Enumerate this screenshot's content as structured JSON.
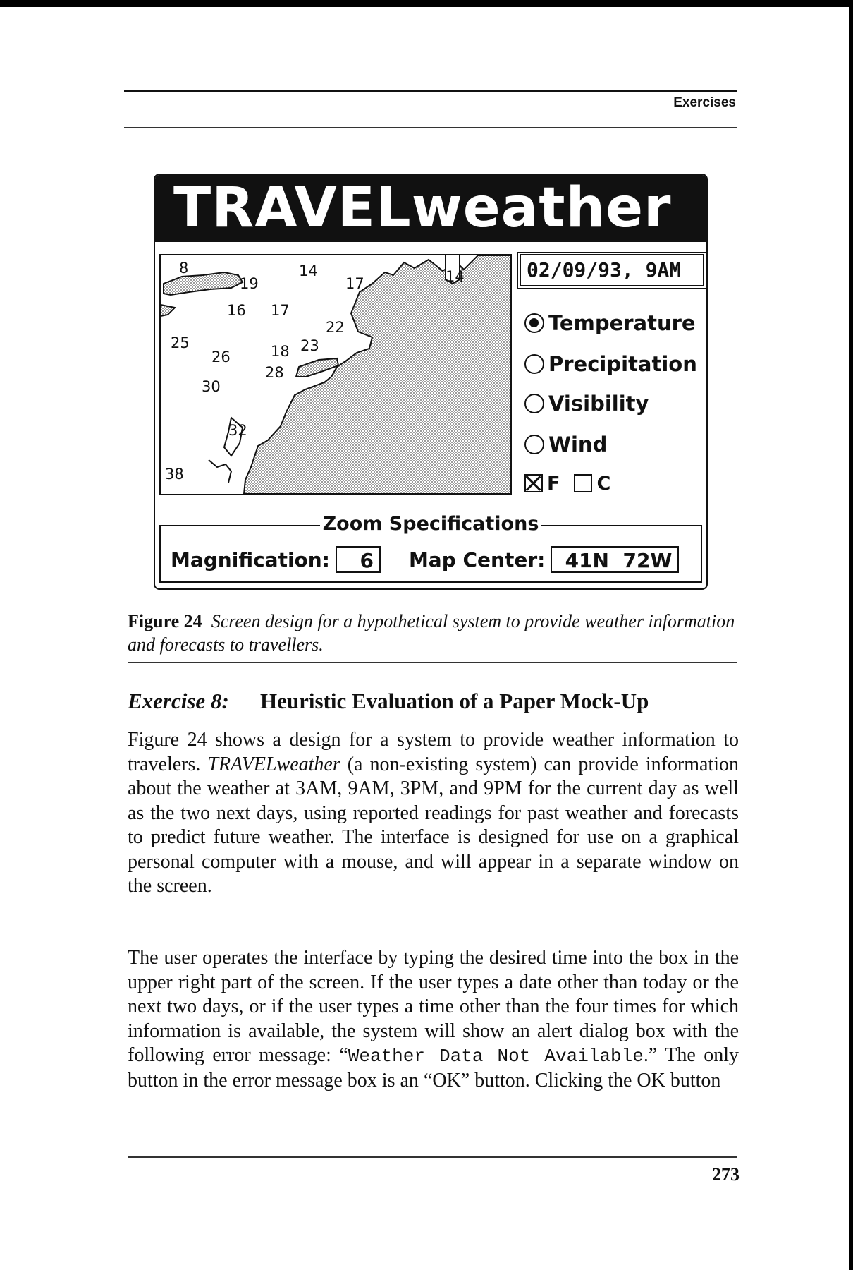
{
  "header": {
    "running_head": "Exercises"
  },
  "figure": {
    "app_title": "TRAVELweather",
    "date_value": "02/09/93, 9AM",
    "map_numbers": [
      "8",
      "14",
      "17",
      "14",
      "19",
      "16",
      "17",
      "22",
      "25",
      "26",
      "18",
      "23",
      "28",
      "30",
      "32",
      "38"
    ],
    "options": [
      {
        "label": "Temperature",
        "selected": true
      },
      {
        "label": "Precipitation",
        "selected": false
      },
      {
        "label": "Visibility",
        "selected": false
      },
      {
        "label": "Wind",
        "selected": false
      }
    ],
    "display_options": [
      "Temperature",
      "Precipitation",
      "Visibility",
      "Wind"
    ],
    "units": {
      "f_label": "F",
      "c_label": "C",
      "f_checked": true,
      "c_checked": false
    },
    "zoom": {
      "legend": "Zoom Specifications",
      "magnification_label": "Magnification:",
      "magnification_value": "6",
      "map_center_label": "Map Center:",
      "map_center_value": "41N  72W"
    }
  },
  "caption": {
    "label": "Figure 24",
    "text": "Screen design for a hypothetical system to provide weather information and forecasts to travellers."
  },
  "exercise": {
    "number": "Exercise 8:",
    "title": "Heuristic Evaluation of a Paper Mock-Up"
  },
  "paragraph1": {
    "start": "Figure 24 shows a design for a system to provide weather information to travelers. ",
    "product": "TRAVELweather",
    "rest": " (a non-existing system) can provide information about the weather at 3AM, 9AM, 3PM, and 9PM for the current day as well as the two next days, using reported readings for past weather and forecasts to predict future weather. The interface is designed for use on a graphical personal computer with a mouse, and will appear in a separate window on the screen."
  },
  "paragraph2": {
    "start": "The user operates the interface by typing the desired time into the box in the upper right part of the screen. If the user types a date other than today or the next two days, or if the user types a time other than the four times for which information is available, the system will show an alert dialog box with the following error message: “",
    "error_message": "Weather Data Not Available",
    "rest": ".” The only button in the error message box is an “OK” button. Clicking the OK button"
  },
  "footer": {
    "page_number": "273"
  }
}
